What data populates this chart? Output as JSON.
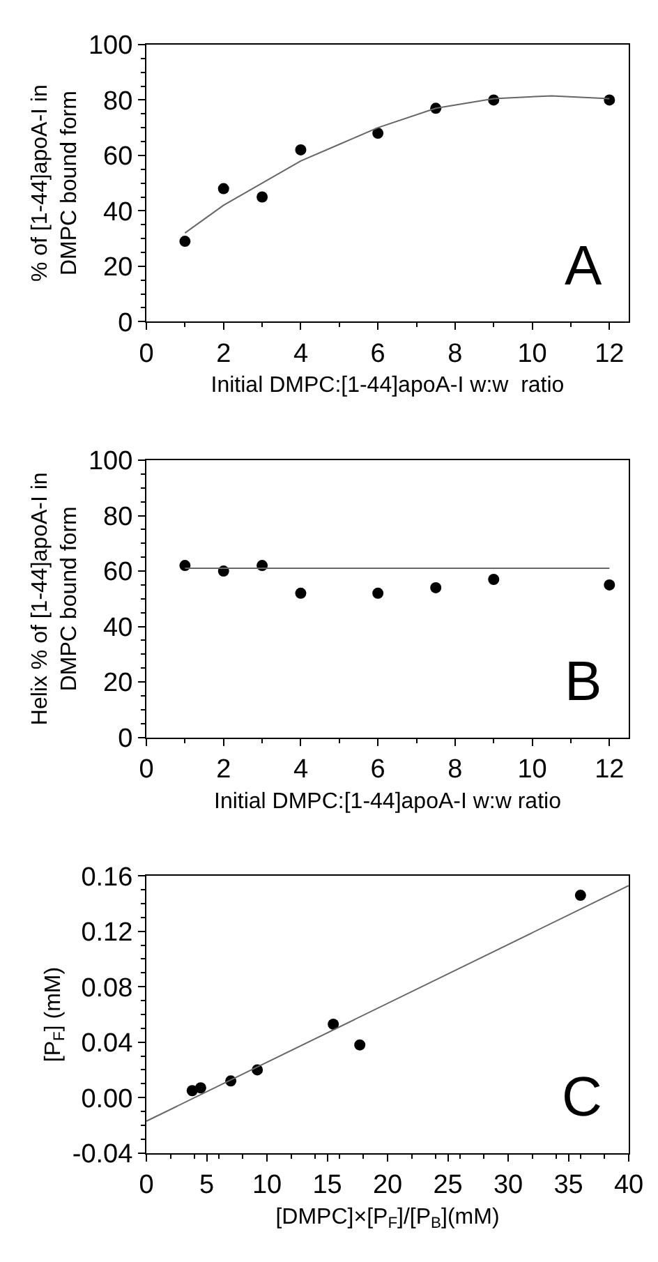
{
  "chart_data": [
    {
      "type": "scatter",
      "xlabel": "Initial DMPC:[1-44]apoA-I w:w  ratio",
      "ylabel": "% of [1-44]apoA-I in\nDMPC bound form",
      "annotations": [
        "A"
      ],
      "x": [
        1,
        2,
        3,
        4,
        6,
        7.5,
        9,
        12
      ],
      "series": [
        {
          "color": "#000000",
          "marker": "circle",
          "values": [
            29,
            48,
            45,
            62,
            68,
            77,
            80,
            80
          ]
        },
        {
          "type": "line",
          "color": "#666666",
          "marker": "none",
          "line_style": "solid",
          "x": [
            1,
            2,
            3,
            4,
            5,
            6,
            7.5,
            9,
            10.5,
            12
          ],
          "values": [
            32,
            42,
            50,
            58,
            64,
            70,
            77,
            80.5,
            81.5,
            80.5
          ]
        }
      ],
      "xlim": [
        0,
        12.5
      ],
      "xticks": [
        0,
        2,
        4,
        6,
        8,
        10,
        12
      ],
      "ylim": [
        0,
        100
      ],
      "yticks": [
        0,
        20,
        40,
        60,
        80,
        100
      ]
    },
    {
      "type": "scatter",
      "xlabel": "Initial DMPC:[1-44]apoA-I w:w ratio",
      "ylabel": "Helix % of [1-44]apoA-I in\nDMPC bound form",
      "annotations": [
        "B"
      ],
      "x": [
        1,
        2,
        3,
        4,
        6,
        7.5,
        9,
        12
      ],
      "series": [
        {
          "color": "#000000",
          "marker": "circle",
          "values": [
            62,
            60,
            62,
            52,
            52,
            54,
            57,
            55
          ]
        },
        {
          "type": "line",
          "color": "#666666",
          "marker": "none",
          "line_style": "solid",
          "x": [
            1,
            12
          ],
          "values": [
            61,
            61
          ]
        }
      ],
      "xlim": [
        0,
        12.5
      ],
      "xticks": [
        0,
        2,
        4,
        6,
        8,
        10,
        12
      ],
      "ylim": [
        0,
        100
      ],
      "yticks": [
        0,
        20,
        40,
        60,
        80,
        100
      ]
    },
    {
      "type": "scatter",
      "xlabel": "[DMPC]×[P$_{F}$]/[P$_{B}$](mM)",
      "ylabel": "[P$_{F}$] (mM)",
      "annotations": [
        "C"
      ],
      "x": [
        3.8,
        4.5,
        7,
        9.2,
        15.5,
        17.7,
        36
      ],
      "series": [
        {
          "color": "#000000",
          "marker": "circle",
          "values": [
            0.005,
            0.007,
            0.012,
            0.02,
            0.053,
            0.038,
            0.146
          ]
        },
        {
          "type": "line",
          "color": "#666666",
          "marker": "none",
          "line_style": "solid",
          "x": [
            0,
            40
          ],
          "values": [
            -0.017,
            0.153
          ]
        }
      ],
      "xlim": [
        0,
        40
      ],
      "xticks": [
        0,
        5,
        10,
        15,
        20,
        25,
        30,
        35,
        40
      ],
      "ylim": [
        -0.04,
        0.16
      ],
      "yticks": [
        -0.04,
        {
          "value": 0,
          "label": "0.00"
        },
        0.04,
        0.08,
        0.12,
        0.16
      ]
    }
  ]
}
